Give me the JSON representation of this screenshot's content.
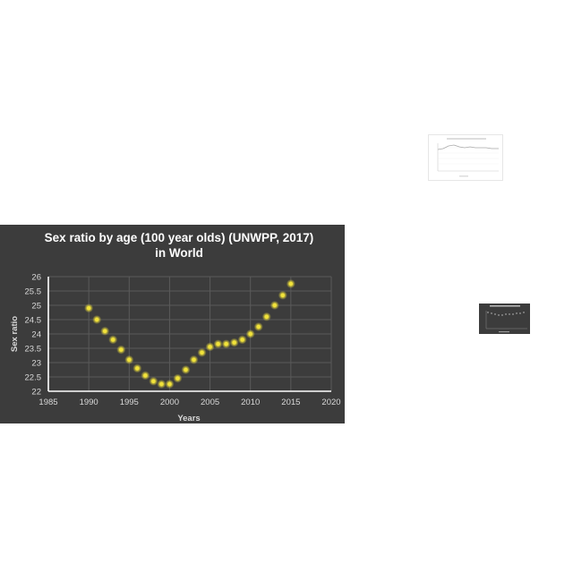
{
  "chart_data": {
    "type": "scatter",
    "title_line1": "Sex ratio by age (100 year olds) (UNWPP, 2017)",
    "title_line2": "in World",
    "xlabel": "Years",
    "ylabel": "Sex ratio",
    "xlim": [
      1985,
      2020
    ],
    "ylim": [
      22,
      26
    ],
    "xticks": [
      1985,
      1990,
      1995,
      2000,
      2005,
      2010,
      2015,
      2020
    ],
    "yticks": [
      22,
      22.5,
      23,
      23.5,
      24,
      24.5,
      25,
      25.5,
      26
    ],
    "ytick_labels": [
      "22",
      "22.5",
      "23",
      "23.5",
      "24",
      "24.5",
      "25",
      "25.5",
      "26"
    ],
    "grid": true,
    "point_color": "#f2e33a",
    "background_color": "#3c3c3c",
    "x": [
      1990,
      1991,
      1992,
      1993,
      1994,
      1995,
      1996,
      1997,
      1998,
      1999,
      2000,
      2001,
      2002,
      2003,
      2004,
      2005,
      2006,
      2007,
      2008,
      2009,
      2010,
      2011,
      2012,
      2013,
      2014,
      2015
    ],
    "y": [
      24.9,
      24.5,
      24.1,
      23.8,
      23.45,
      23.1,
      22.8,
      22.55,
      22.35,
      22.25,
      22.25,
      22.45,
      22.75,
      23.1,
      23.35,
      23.55,
      23.65,
      23.65,
      23.7,
      23.8,
      24.0,
      24.25,
      24.6,
      25.0,
      25.35,
      25.75
    ]
  },
  "thumbnails": {
    "light_chart_line_color": "#bbbbbb",
    "dark_chart_point_color": "#cccccc"
  }
}
